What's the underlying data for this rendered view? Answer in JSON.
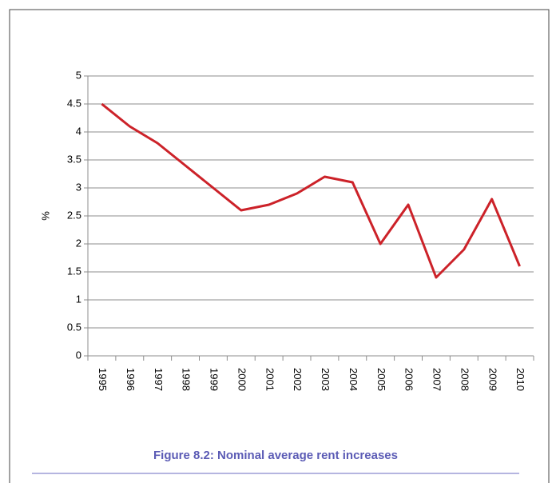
{
  "chart_data": {
    "type": "line",
    "title": "Figure 8.2: Nominal average rent increases",
    "y_label": "%",
    "categories": [
      "1995",
      "1996",
      "1997",
      "1998",
      "1999",
      "2000",
      "2001",
      "2002",
      "2003",
      "2004",
      "2005",
      "2006",
      "2007",
      "2008",
      "2009",
      "2010"
    ],
    "values": [
      4.5,
      4.1,
      3.8,
      3.4,
      3.0,
      2.6,
      2.7,
      2.9,
      3.2,
      3.1,
      2.0,
      2.7,
      1.4,
      1.9,
      2.8,
      1.6
    ],
    "color": "#cc2229",
    "ylim": [
      0,
      5
    ],
    "yticks": [
      0,
      0.5,
      1,
      1.5,
      2,
      2.5,
      3,
      3.5,
      4,
      4.5,
      5
    ],
    "grid": true
  }
}
